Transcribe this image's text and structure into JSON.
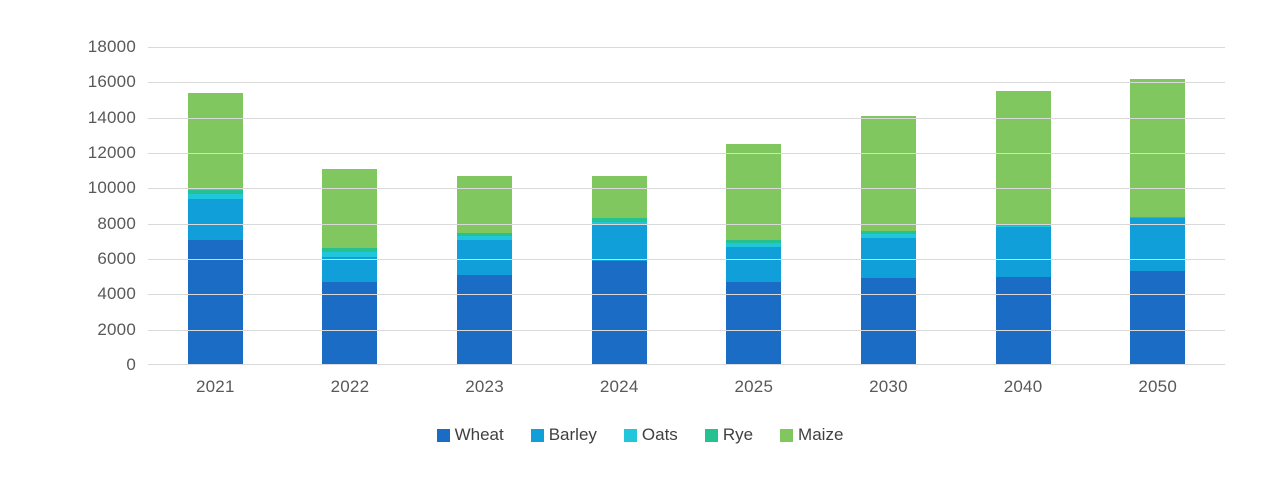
{
  "chart_data": {
    "type": "bar",
    "stacked": true,
    "title": "",
    "xlabel": "",
    "ylabel": "",
    "categories": [
      "2021",
      "2022",
      "2023",
      "2024",
      "2025",
      "2030",
      "2040",
      "2050"
    ],
    "series": [
      {
        "name": "Wheat",
        "color": "#1a6cc4",
        "values": [
          7100,
          4700,
          5100,
          5900,
          4700,
          4900,
          5000,
          5300
        ]
      },
      {
        "name": "Barley",
        "color": "#119fd9",
        "values": [
          2300,
          1400,
          2000,
          2000,
          2000,
          2300,
          2800,
          3000
        ]
      },
      {
        "name": "Oats",
        "color": "#20c7da",
        "values": [
          300,
          300,
          200,
          200,
          200,
          200,
          50,
          50
        ]
      },
      {
        "name": "Rye",
        "color": "#26c191",
        "values": [
          200,
          200,
          200,
          200,
          200,
          200,
          50,
          50
        ]
      },
      {
        "name": "Maize",
        "color": "#80c75f",
        "values": [
          5500,
          4500,
          3200,
          2400,
          5400,
          6500,
          7600,
          7800
        ]
      }
    ],
    "totals": [
      15400,
      11100,
      10700,
      10700,
      12500,
      14100,
      15500,
      16200
    ],
    "ylim": [
      0,
      18000
    ],
    "ytick_step": 2000,
    "ytick_labels": [
      "0",
      "2000",
      "4000",
      "6000",
      "8000",
      "10000",
      "12000",
      "14000",
      "16000",
      "18000"
    ],
    "grid": true,
    "legend_position": "bottom",
    "colors": {
      "gridline": "#d9d9d9",
      "axis_text": "#595959",
      "legend_text": "#404040",
      "background": "#ffffff"
    }
  }
}
